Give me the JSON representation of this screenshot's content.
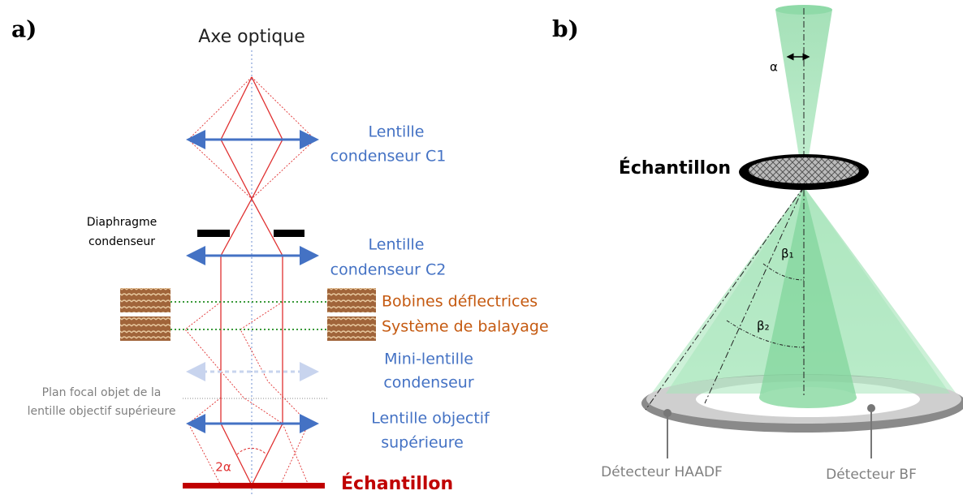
{
  "panel_a": {
    "label": "a)",
    "axis": "Axe optique",
    "lens_c1": [
      "Lentille",
      "condenseur C1"
    ],
    "diaphragm": [
      "Diaphragme",
      "condenseur"
    ],
    "lens_c2": [
      "Lentille",
      "condenseur C2"
    ],
    "deflector_coils": "Bobines déflectrices",
    "scan_system": "Système de balayage",
    "mini_lens": [
      "Mini-lentille",
      "condenseur"
    ],
    "focal_plane": [
      "Plan focal objet de la",
      "lentille objectif supérieure"
    ],
    "objective_lens": [
      "Lentille objectif",
      "supérieure"
    ],
    "angle": "2α",
    "sample": "Échantillon"
  },
  "panel_b": {
    "label": "b)",
    "alpha": "α",
    "sample": "Échantillon",
    "beta1": "β₁",
    "beta2": "β₂",
    "haadf": "Détecteur HAADF",
    "bf": "Détecteur BF"
  }
}
